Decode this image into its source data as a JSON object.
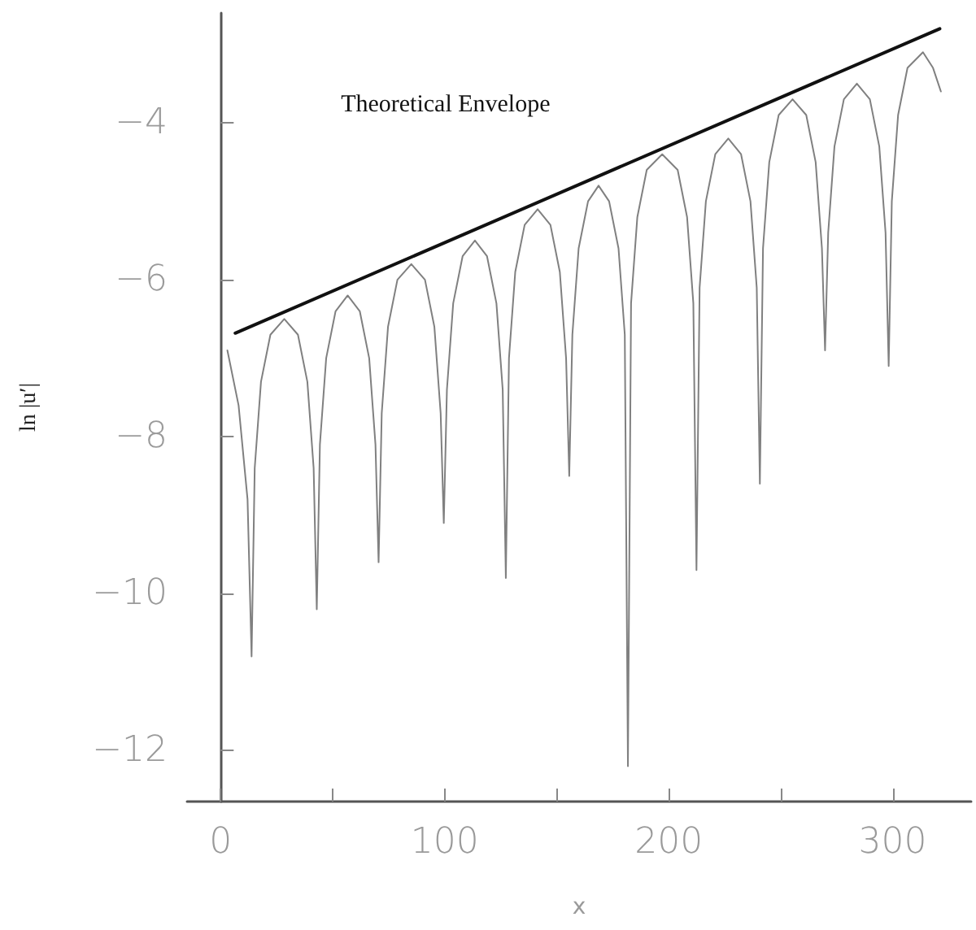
{
  "chart_data": {
    "type": "line",
    "xlabel": "x",
    "ylabel": "ln |u′|",
    "xlim": [
      -15,
      335
    ],
    "ylim": [
      -12.65,
      -2.6
    ],
    "xticks": [
      0,
      {
        "value": 50,
        "label": null
      },
      100,
      {
        "value": 150,
        "label": null
      },
      200,
      {
        "value": 250,
        "label": null
      },
      300
    ],
    "yticks": [
      -12,
      -10,
      -8,
      -6,
      -4
    ],
    "grid": false,
    "legend": false,
    "marker": "none",
    "series": [
      {
        "color": "#808080",
        "x": [
          3,
          8,
          12,
          13.8,
          15.2,
          18.0,
          22.2,
          28.4,
          34.5,
          38.7,
          41.5,
          42.9,
          44.3,
          47.1,
          51.3,
          56.7,
          62.1,
          66.3,
          69.1,
          70.5,
          71.9,
          74.7,
          78.9,
          85.1,
          91.2,
          95.4,
          98.2,
          99.6,
          101.0,
          103.8,
          108.0,
          113.5,
          118.9,
          123.1,
          125.9,
          127.3,
          128.7,
          131.5,
          135.7,
          141.5,
          147.2,
          151.4,
          154.2,
          155.6,
          157.0,
          159.8,
          164.0,
          168.7,
          173.4,
          177.6,
          180.4,
          181.8,
          183.2,
          186.0,
          190.2,
          197.1,
          204.0,
          208.2,
          211.0,
          212.4,
          213.8,
          216.6,
          220.8,
          226.6,
          232.3,
          236.5,
          239.3,
          240.7,
          242.1,
          244.9,
          249.1,
          255.3,
          261.4,
          265.6,
          268.4,
          269.8,
          271.2,
          274.0,
          278.2,
          284.0,
          289.8,
          294.0,
          296.8,
          298.2,
          299.6,
          302.4,
          306.6,
          313.5,
          318,
          321.5
        ],
        "values": [
          -6.9,
          -7.6,
          -8.8,
          -10.8,
          -8.4,
          -7.3,
          -6.7,
          -6.5,
          -6.7,
          -7.3,
          -8.4,
          -10.2,
          -8.1,
          -7.0,
          -6.4,
          -6.2,
          -6.4,
          -7.0,
          -8.1,
          -9.6,
          -7.7,
          -6.6,
          -6.0,
          -5.8,
          -6.0,
          -6.6,
          -7.7,
          -9.1,
          -7.4,
          -6.3,
          -5.7,
          -5.5,
          -5.7,
          -6.3,
          -7.4,
          -9.8,
          -7.0,
          -5.9,
          -5.3,
          -5.1,
          -5.3,
          -5.9,
          -7.0,
          -8.5,
          -6.7,
          -5.6,
          -5.0,
          -4.8,
          -5.0,
          -5.6,
          -6.7,
          -12.2,
          -6.3,
          -5.2,
          -4.6,
          -4.4,
          -4.6,
          -5.2,
          -6.3,
          -9.7,
          -6.1,
          -5.0,
          -4.4,
          -4.2,
          -4.4,
          -5.0,
          -6.1,
          -8.6,
          -5.6,
          -4.5,
          -3.9,
          -3.7,
          -3.9,
          -4.5,
          -5.6,
          -6.9,
          -5.4,
          -4.3,
          -3.7,
          -3.5,
          -3.7,
          -4.3,
          -5.4,
          -7.1,
          -5.0,
          -3.9,
          -3.3,
          -3.1,
          -3.3,
          -3.6
        ]
      },
      {
        "name": "Theoretical Envelope",
        "color": "#111111",
        "x": [
          6.5,
          321
        ],
        "values": [
          -6.68,
          -2.8
        ]
      }
    ]
  }
}
